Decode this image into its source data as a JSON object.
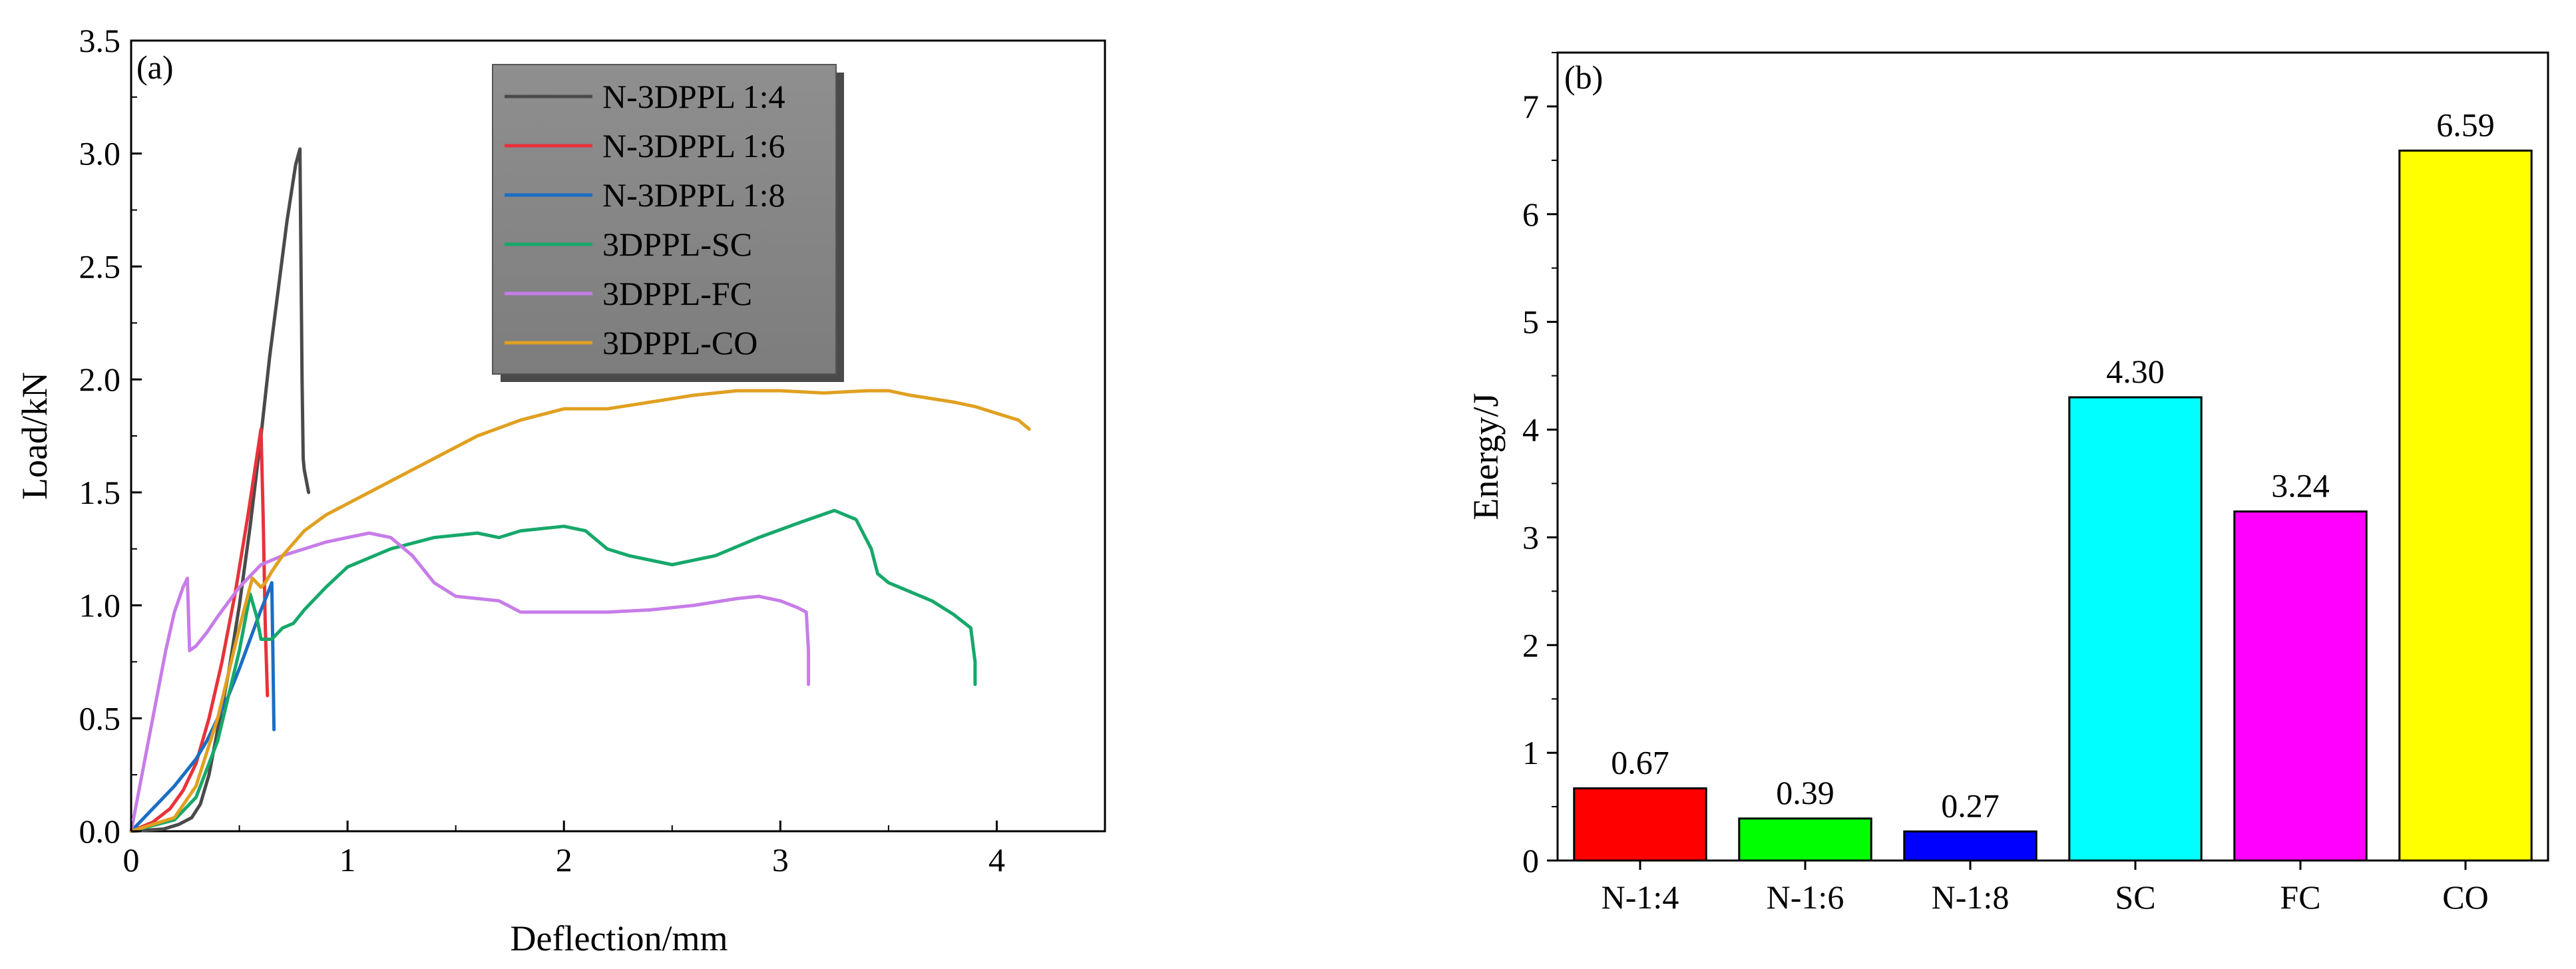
{
  "chart_data": [
    {
      "type": "line",
      "panel_label": "(a)",
      "xlabel": "Deflection/mm",
      "ylabel": "Load/kN",
      "xlim": [
        0,
        4.5
      ],
      "ylim": [
        0,
        3.5
      ],
      "xticks": [
        "0",
        "1",
        "2",
        "3",
        "4"
      ],
      "yticks": [
        "0.0",
        "0.5",
        "1.0",
        "1.5",
        "2.0",
        "2.5",
        "3.0",
        "3.5"
      ],
      "legend_position": "top-center",
      "series": [
        {
          "name": "N-3DPPL 1:4",
          "color": "#4a4a4a",
          "x": [
            0,
            0.15,
            0.22,
            0.28,
            0.32,
            0.36,
            0.4,
            0.45,
            0.5,
            0.55,
            0.6,
            0.64,
            0.68,
            0.72,
            0.76,
            0.78,
            0.79,
            0.795,
            0.8,
            0.82
          ],
          "y": [
            0,
            0.01,
            0.03,
            0.06,
            0.12,
            0.25,
            0.45,
            0.7,
            1.0,
            1.35,
            1.75,
            2.1,
            2.4,
            2.7,
            2.95,
            3.02,
            2.0,
            1.65,
            1.6,
            1.5
          ]
        },
        {
          "name": "N-3DPPL 1:6",
          "color": "#e8323a",
          "x": [
            0,
            0.1,
            0.18,
            0.24,
            0.3,
            0.36,
            0.42,
            0.48,
            0.54,
            0.6,
            0.61,
            0.62,
            0.63
          ],
          "y": [
            0,
            0.04,
            0.1,
            0.18,
            0.3,
            0.5,
            0.75,
            1.05,
            1.4,
            1.78,
            1.4,
            0.9,
            0.6
          ]
        },
        {
          "name": "N-3DPPL 1:8",
          "color": "#1a6ec4",
          "x": [
            0,
            0.05,
            0.1,
            0.15,
            0.2,
            0.25,
            0.3,
            0.35,
            0.4,
            0.45,
            0.5,
            0.55,
            0.6,
            0.63,
            0.65,
            0.655,
            0.66
          ],
          "y": [
            0,
            0.05,
            0.1,
            0.15,
            0.2,
            0.26,
            0.32,
            0.4,
            0.5,
            0.6,
            0.72,
            0.85,
            0.98,
            1.05,
            1.1,
            0.8,
            0.45
          ]
        },
        {
          "name": "3DPPL-SC",
          "color": "#16a86a",
          "x": [
            0,
            0.2,
            0.3,
            0.4,
            0.5,
            0.55,
            0.58,
            0.6,
            0.65,
            0.7,
            0.75,
            0.8,
            0.9,
            1.0,
            1.2,
            1.4,
            1.6,
            1.7,
            1.8,
            2.0,
            2.1,
            2.2,
            2.3,
            2.5,
            2.7,
            2.9,
            3.1,
            3.25,
            3.35,
            3.42,
            3.45,
            3.5,
            3.6,
            3.7,
            3.8,
            3.88,
            3.9,
            3.9
          ],
          "y": [
            0,
            0.05,
            0.15,
            0.4,
            0.8,
            1.05,
            0.95,
            0.85,
            0.85,
            0.9,
            0.92,
            0.98,
            1.08,
            1.17,
            1.25,
            1.3,
            1.32,
            1.3,
            1.33,
            1.35,
            1.33,
            1.25,
            1.22,
            1.18,
            1.22,
            1.3,
            1.37,
            1.42,
            1.38,
            1.25,
            1.14,
            1.1,
            1.06,
            1.02,
            0.96,
            0.9,
            0.75,
            0.65
          ]
        },
        {
          "name": "3DPPL-FC",
          "color": "#c77de8",
          "x": [
            0,
            0.04,
            0.08,
            0.12,
            0.16,
            0.2,
            0.24,
            0.26,
            0.27,
            0.3,
            0.35,
            0.4,
            0.5,
            0.6,
            0.7,
            0.8,
            0.9,
            1.0,
            1.1,
            1.2,
            1.3,
            1.4,
            1.5,
            1.6,
            1.7,
            1.8,
            2.0,
            2.2,
            2.4,
            2.6,
            2.8,
            2.9,
            3.0,
            3.08,
            3.12,
            3.13,
            3.13
          ],
          "y": [
            0,
            0.2,
            0.4,
            0.6,
            0.8,
            0.97,
            1.08,
            1.12,
            0.8,
            0.82,
            0.88,
            0.95,
            1.08,
            1.18,
            1.22,
            1.25,
            1.28,
            1.3,
            1.32,
            1.3,
            1.22,
            1.1,
            1.04,
            1.03,
            1.02,
            0.97,
            0.97,
            0.97,
            0.98,
            1.0,
            1.03,
            1.04,
            1.02,
            0.99,
            0.97,
            0.8,
            0.65
          ]
        },
        {
          "name": "3DPPL-CO",
          "color": "#e0a020",
          "x": [
            0,
            0.2,
            0.3,
            0.4,
            0.5,
            0.56,
            0.6,
            0.62,
            0.65,
            0.7,
            0.8,
            0.9,
            1.0,
            1.2,
            1.4,
            1.6,
            1.8,
            2.0,
            2.2,
            2.4,
            2.6,
            2.8,
            3.0,
            3.2,
            3.4,
            3.5,
            3.6,
            3.8,
            3.9,
            4.0,
            4.1,
            4.15
          ],
          "y": [
            0,
            0.06,
            0.2,
            0.5,
            0.9,
            1.12,
            1.08,
            1.1,
            1.15,
            1.22,
            1.33,
            1.4,
            1.45,
            1.55,
            1.65,
            1.75,
            1.82,
            1.87,
            1.87,
            1.9,
            1.93,
            1.95,
            1.95,
            1.94,
            1.95,
            1.95,
            1.93,
            1.9,
            1.88,
            1.85,
            1.82,
            1.78
          ]
        }
      ]
    },
    {
      "type": "bar",
      "panel_label": "(b)",
      "xlabel": "",
      "ylabel": "Energy/J",
      "ylim": [
        0,
        7.5
      ],
      "yticks": [
        "0",
        "1",
        "2",
        "3",
        "4",
        "5",
        "6",
        "7"
      ],
      "categories": [
        "N-1:4",
        "N-1:6",
        "N-1:8",
        "SC",
        "FC",
        "CO"
      ],
      "values": [
        0.67,
        0.39,
        0.27,
        4.3,
        3.24,
        6.59
      ],
      "value_labels": [
        "0.67",
        "0.39",
        "0.27",
        "4.30",
        "3.24",
        "6.59"
      ],
      "colors": [
        "#ff0000",
        "#00ff00",
        "#0000ff",
        "#00ffff",
        "#ff00ff",
        "#ffff00"
      ]
    }
  ]
}
